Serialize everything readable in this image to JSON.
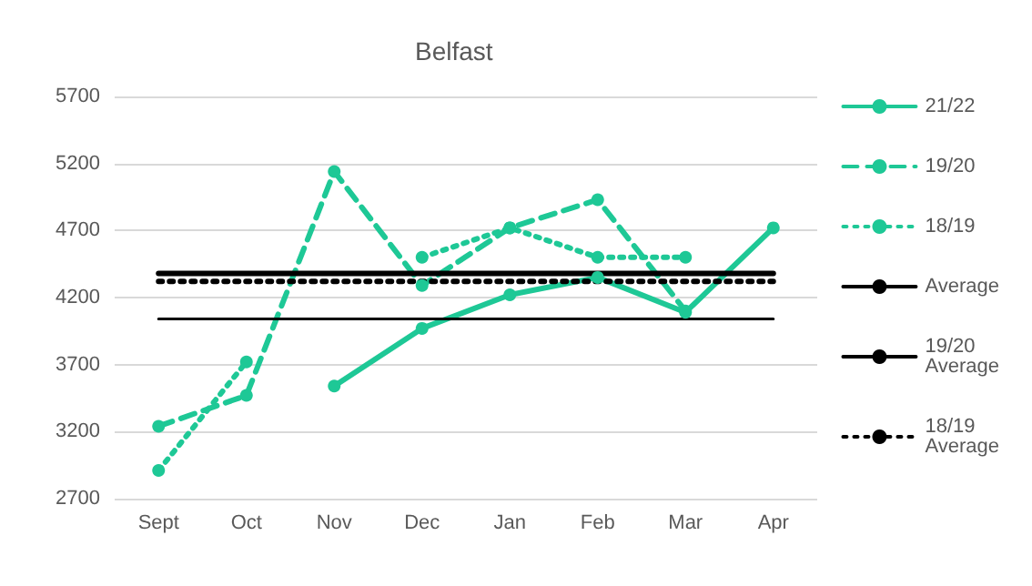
{
  "chart_data": {
    "type": "line",
    "title": "Belfast",
    "categories": [
      "Sept",
      "Oct",
      "Nov",
      "Dec",
      "Jan",
      "Feb",
      "Mar",
      "Apr"
    ],
    "series": [
      {
        "name": "21/22",
        "color": "#1ec896",
        "line_style": "solid",
        "marker": "circle",
        "values": [
          null,
          null,
          3540,
          3970,
          4220,
          4350,
          4090,
          4720
        ]
      },
      {
        "name": "19/20",
        "color": "#1ec896",
        "line_style": "dashed",
        "marker": "circle",
        "values": [
          3240,
          3470,
          5140,
          4290,
          4720,
          4930,
          4100,
          null
        ]
      },
      {
        "name": "18/19",
        "color": "#1ec896",
        "line_style": "dotted",
        "marker": "circle",
        "values": [
          2910,
          3720,
          null,
          4500,
          4720,
          4500,
          4500,
          null
        ]
      },
      {
        "name": "Average",
        "color": "#000000",
        "line_style": "solid",
        "marker": "none",
        "values": [
          4040,
          4040,
          4040,
          4040,
          4040,
          4040,
          4040,
          4040
        ]
      },
      {
        "name": "19/20 Average",
        "color": "#000000",
        "line_style": "solid",
        "marker": "none",
        "values": [
          4380,
          4380,
          4380,
          4380,
          4380,
          4380,
          4380,
          4380
        ]
      },
      {
        "name": "18/19 Average",
        "color": "#000000",
        "line_style": "dotted",
        "marker": "none",
        "values": [
          4320,
          4320,
          4320,
          4320,
          4320,
          4320,
          4320,
          4320
        ]
      }
    ],
    "ylim": [
      2700,
      5700
    ],
    "yticks": [
      2700,
      3200,
      3700,
      4200,
      4700,
      5200,
      5700
    ],
    "grid": "y",
    "legend": "right"
  }
}
